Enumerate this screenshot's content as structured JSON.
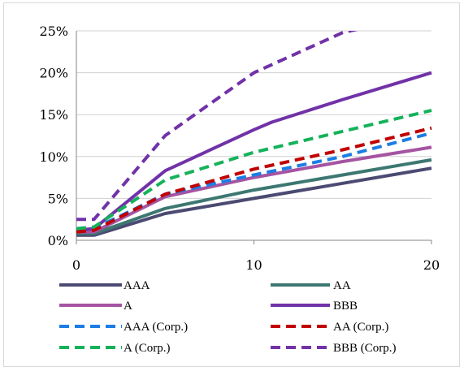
{
  "chart_data": {
    "type": "line",
    "title": "",
    "xlabel": "",
    "ylabel": "",
    "xlim": [
      0,
      20
    ],
    "ylim": [
      0,
      0.25
    ],
    "x_ticks": [
      0,
      10,
      20
    ],
    "x_tick_labels": [
      "0",
      "10",
      "20"
    ],
    "y_ticks": [
      0,
      0.05,
      0.1,
      0.15,
      0.2,
      0.25
    ],
    "y_tick_labels": [
      "0%",
      "5%",
      "10%",
      "15%",
      "20%",
      "25%"
    ],
    "grid": "horizontal",
    "legend_position": "bottom",
    "series": [
      {
        "name": "AAA",
        "color": "#4b4a72",
        "dashed": false,
        "x": [
          0,
          1,
          5,
          10,
          15,
          20
        ],
        "y": [
          0.006,
          0.006,
          0.032,
          0.05,
          0.068,
          0.086
        ]
      },
      {
        "name": "AA",
        "color": "#3d7771",
        "dashed": false,
        "x": [
          0,
          1,
          5,
          10,
          15,
          20
        ],
        "y": [
          0.008,
          0.008,
          0.038,
          0.06,
          0.078,
          0.096
        ]
      },
      {
        "name": "A",
        "color": "#a554a2",
        "dashed": false,
        "x": [
          0,
          1,
          5,
          10,
          15,
          20
        ],
        "y": [
          0.01,
          0.01,
          0.052,
          0.075,
          0.094,
          0.111
        ]
      },
      {
        "name": "BBB",
        "color": "#7132a8",
        "dashed": false,
        "x": [
          0,
          1,
          5,
          10,
          11,
          15,
          20
        ],
        "y": [
          0.012,
          0.014,
          0.083,
          0.132,
          0.141,
          0.168,
          0.2
        ]
      },
      {
        "name": "AAA (Corp.)",
        "color": "#1c7de4",
        "dashed": true,
        "x": [
          0,
          1,
          5,
          10,
          15,
          20
        ],
        "y": [
          0.012,
          0.014,
          0.055,
          0.078,
          0.1,
          0.128
        ]
      },
      {
        "name": "AA (Corp.)",
        "color": "#c00000",
        "dashed": true,
        "x": [
          0,
          1,
          5,
          10,
          15,
          20
        ],
        "y": [
          0.01,
          0.012,
          0.055,
          0.085,
          0.108,
          0.134
        ]
      },
      {
        "name": "A (Corp.)",
        "color": "#15b25a",
        "dashed": true,
        "x": [
          0,
          1,
          5,
          10,
          15,
          20
        ],
        "y": [
          0.014,
          0.016,
          0.072,
          0.105,
          0.13,
          0.155
        ]
      },
      {
        "name": "BBB (Corp.)",
        "color": "#7132a8",
        "dashed": true,
        "x": [
          0,
          1,
          5,
          10,
          15,
          16.5
        ],
        "y": [
          0.025,
          0.025,
          0.125,
          0.2,
          0.248,
          0.255
        ]
      }
    ]
  }
}
